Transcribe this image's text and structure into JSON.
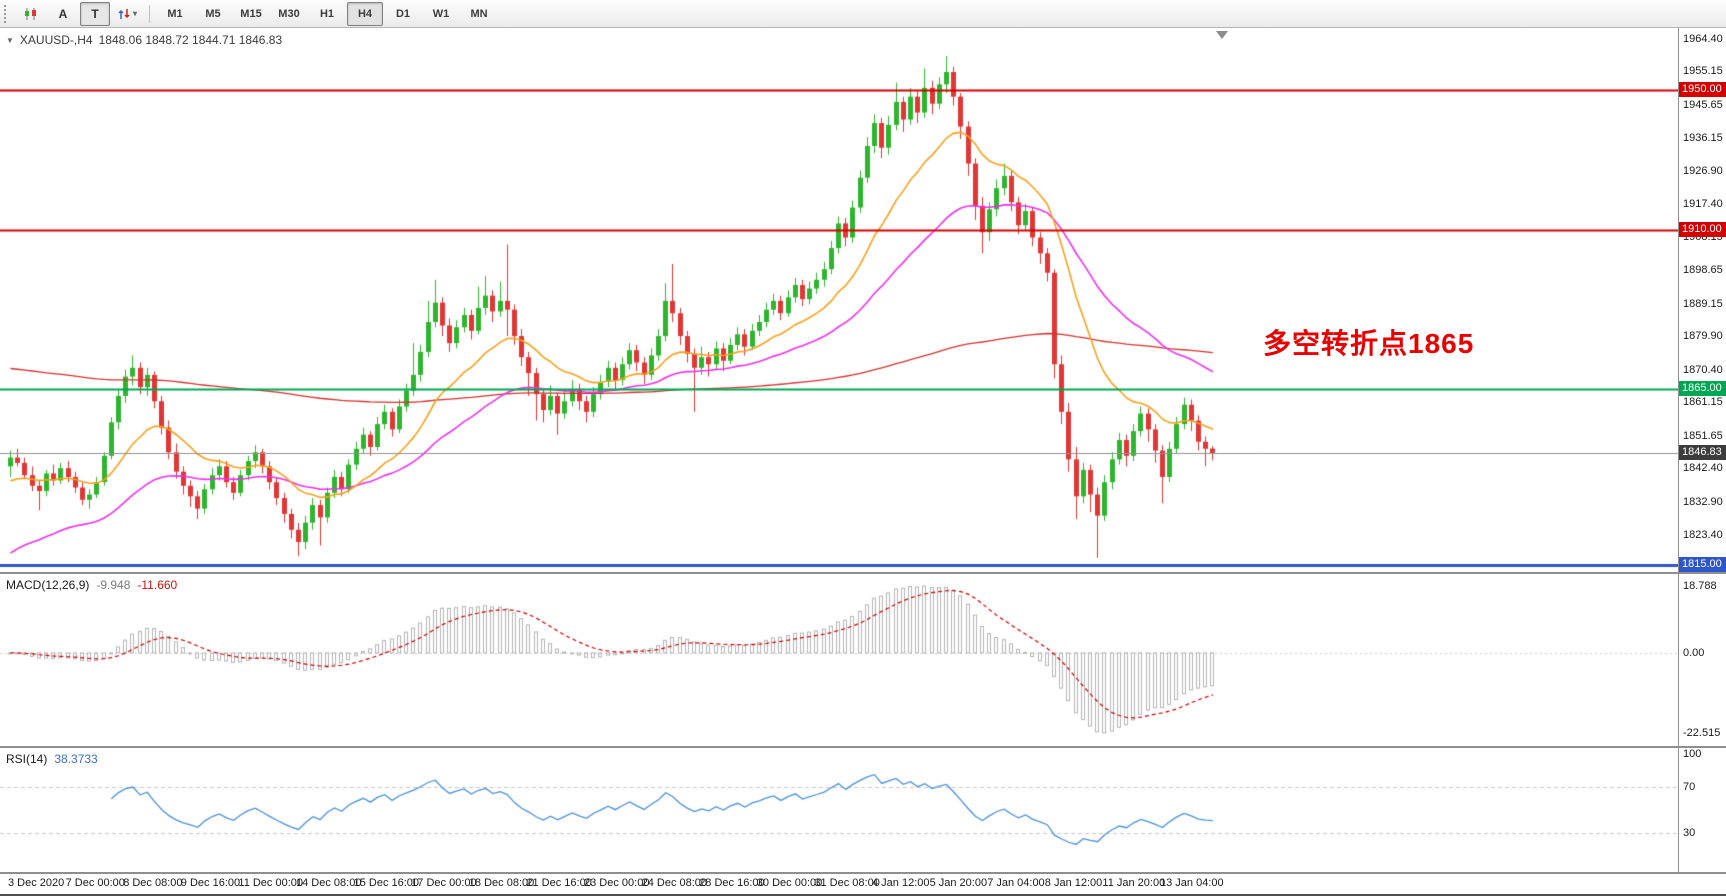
{
  "toolbar": {
    "label_a": "A",
    "label_t": "T",
    "timeframes": [
      "M1",
      "M5",
      "M15",
      "M30",
      "H1",
      "H4",
      "D1",
      "W1",
      "MN"
    ],
    "active_timeframe": "H4"
  },
  "main_chart": {
    "symbol_label": "XAUUSD-,H4",
    "ohlc_values": "1848.06 1848.72 1844.71 1846.83",
    "annotation": "多空转折点1865",
    "annotation_color": "#e60000",
    "hlines": [
      {
        "price": 1950.0,
        "label": "1950.00",
        "color": "#d40000",
        "width": 2
      },
      {
        "price": 1910.0,
        "label": "1910.00",
        "color": "#d40000",
        "width": 2
      },
      {
        "price": 1865.0,
        "label": "1865.00",
        "color": "#00a651",
        "width": 2
      },
      {
        "price": 1815.0,
        "label": "1815.00",
        "color": "#2e56c8",
        "width": 3
      }
    ],
    "current_price": {
      "value": 1846.83,
      "label": "1846.83",
      "bg": "#3c3c3c"
    },
    "price_ticks": [
      "1964.40",
      "1955.15",
      "1945.65",
      "1936.15",
      "1926.90",
      "1917.40",
      "1908.15",
      "1898.65",
      "1889.15",
      "1879.90",
      "1870.40",
      "1861.15",
      "1851.65",
      "1842.40",
      "1832.90",
      "1823.40"
    ]
  },
  "macd_panel": {
    "name": "MACD(12,26,9)",
    "value_main": "-9.948",
    "value_signal": "-11.660",
    "axis_labels": [
      "18.788",
      "0.00",
      "-22.515"
    ]
  },
  "rsi_panel": {
    "name": "RSI(14)",
    "value": "38.3733",
    "axis_labels": [
      "100",
      "70",
      "30"
    ],
    "levels": [
      70,
      30
    ]
  },
  "time_axis": {
    "labels": [
      "3 Dec 2020",
      "7 Dec 00:00",
      "8 Dec 08:00",
      "9 Dec 16:00",
      "11 Dec 00:00",
      "14 Dec 08:00",
      "15 Dec 16:00",
      "17 Dec 00:00",
      "18 Dec 08:00",
      "21 Dec 16:00",
      "23 Dec 00:00",
      "24 Dec 08:00",
      "28 Dec 16:00",
      "30 Dec 00:00",
      "31 Dec 08:00",
      "4 Jan 12:00",
      "5 Jan 20:00",
      "7 Jan 04:00",
      "8 Jan 12:00",
      "11 Jan 20:00",
      "13 Jan 04:00"
    ]
  },
  "colors": {
    "up": "#2fb42f",
    "down": "#e03636",
    "macd_hist": "#b4b4b4",
    "macd_signal": "#d00000",
    "rsi_line": "#4a90d9",
    "level_dash": "#c8c8c8",
    "current_line": "#909090"
  },
  "chart_data": {
    "type": "candlestick",
    "symbol": "XAUUSD",
    "timeframe": "H4",
    "title": "XAUUSD-,H4",
    "ylim": [
      1813.0,
      1967.5
    ],
    "overlays": [
      {
        "name": "ma-slow-red",
        "color": "#d23030",
        "period": 250,
        "seed": 1871,
        "width": 1.3
      },
      {
        "name": "ma-mid-magenta",
        "color": "#ee30ee",
        "period": 40,
        "seed": 1817,
        "width": 1.6
      },
      {
        "name": "ma-fast-orange",
        "color": "#f6a11c",
        "period": 16,
        "seed": 1838,
        "width": 1.6
      }
    ],
    "ohlc": [
      [
        1843,
        1847.5,
        1840,
        1845.5
      ],
      [
        1845.5,
        1848,
        1843,
        1844
      ],
      [
        1844,
        1845.5,
        1839.5,
        1840.5
      ],
      [
        1840.5,
        1843,
        1836,
        1837.5
      ],
      [
        1837.5,
        1839,
        1830.5,
        1836
      ],
      [
        1836,
        1842,
        1834.5,
        1841
      ],
      [
        1841,
        1843.5,
        1837.5,
        1839
      ],
      [
        1839,
        1844,
        1838,
        1842.5
      ],
      [
        1842.5,
        1844.5,
        1838.5,
        1840
      ],
      [
        1840,
        1841.5,
        1835.5,
        1837
      ],
      [
        1837,
        1838.5,
        1832,
        1833.5
      ],
      [
        1833.5,
        1836.5,
        1831,
        1835
      ],
      [
        1835,
        1840,
        1834,
        1838.5
      ],
      [
        1838.5,
        1847,
        1837.5,
        1846
      ],
      [
        1846,
        1857,
        1845,
        1855.5
      ],
      [
        1855.5,
        1865,
        1853.5,
        1863
      ],
      [
        1863,
        1870.5,
        1861,
        1868.5
      ],
      [
        1868.5,
        1874.5,
        1866,
        1871
      ],
      [
        1871,
        1872.5,
        1863.5,
        1865.5
      ],
      [
        1865.5,
        1871,
        1863,
        1869
      ],
      [
        1869,
        1870,
        1859.5,
        1861.5
      ],
      [
        1861.5,
        1863,
        1852,
        1854
      ],
      [
        1854,
        1856,
        1845,
        1847
      ],
      [
        1847,
        1849.5,
        1839.5,
        1841.5
      ],
      [
        1841.5,
        1843,
        1835,
        1837.5
      ],
      [
        1837.5,
        1839,
        1831.5,
        1834.5
      ],
      [
        1834.5,
        1836,
        1828,
        1831
      ],
      [
        1831,
        1838,
        1829.5,
        1836.5
      ],
      [
        1836.5,
        1842.5,
        1835,
        1840.5
      ],
      [
        1840.5,
        1845,
        1839,
        1843
      ],
      [
        1843,
        1844.5,
        1837,
        1838.5
      ],
      [
        1838.5,
        1840,
        1833.5,
        1835.5
      ],
      [
        1835.5,
        1842,
        1834.5,
        1840.5
      ],
      [
        1840.5,
        1846,
        1839,
        1844.5
      ],
      [
        1844.5,
        1849,
        1842.5,
        1847
      ],
      [
        1847,
        1848,
        1841,
        1843
      ],
      [
        1843,
        1844.5,
        1836.5,
        1838.5
      ],
      [
        1838.5,
        1840,
        1832,
        1834
      ],
      [
        1834,
        1835.5,
        1827,
        1829.5
      ],
      [
        1829.5,
        1831,
        1822.5,
        1825
      ],
      [
        1825,
        1827,
        1817.5,
        1821.5
      ],
      [
        1821.5,
        1829,
        1819.5,
        1827
      ],
      [
        1827,
        1834,
        1825,
        1832
      ],
      [
        1832,
        1833.5,
        1820.5,
        1828.5
      ],
      [
        1828.5,
        1837,
        1827,
        1835.5
      ],
      [
        1835.5,
        1842,
        1834,
        1840
      ],
      [
        1840,
        1841.5,
        1834.5,
        1836.5
      ],
      [
        1836.5,
        1845,
        1835.5,
        1843.5
      ],
      [
        1843.5,
        1850,
        1842,
        1848
      ],
      [
        1848,
        1854,
        1846.5,
        1852
      ],
      [
        1852,
        1853,
        1846,
        1848.5
      ],
      [
        1848.5,
        1857,
        1847.5,
        1855
      ],
      [
        1855,
        1860.5,
        1853.5,
        1858.5
      ],
      [
        1858.5,
        1859.5,
        1851.5,
        1853.5
      ],
      [
        1853.5,
        1862,
        1852.5,
        1860
      ],
      [
        1860,
        1866.5,
        1858.5,
        1864.5
      ],
      [
        1864.5,
        1878,
        1863,
        1869
      ],
      [
        1869,
        1877.5,
        1867,
        1875.5
      ],
      [
        1875.5,
        1890,
        1874,
        1884
      ],
      [
        1884,
        1896,
        1882.5,
        1889.5
      ],
      [
        1889.5,
        1891,
        1880,
        1883
      ],
      [
        1883,
        1885,
        1875.5,
        1878
      ],
      [
        1878,
        1884.5,
        1876.5,
        1882.5
      ],
      [
        1882.5,
        1888,
        1881,
        1886
      ],
      [
        1886,
        1887.5,
        1879,
        1881.5
      ],
      [
        1881.5,
        1894,
        1880.5,
        1888
      ],
      [
        1888,
        1897,
        1886,
        1891.5
      ],
      [
        1891.5,
        1893,
        1884,
        1887
      ],
      [
        1887,
        1895.5,
        1885.5,
        1890
      ],
      [
        1890,
        1906,
        1880,
        1887.5
      ],
      [
        1887.5,
        1889,
        1877.5,
        1880
      ],
      [
        1880,
        1882,
        1871.5,
        1874
      ],
      [
        1874,
        1875.5,
        1863,
        1869.5
      ],
      [
        1869.5,
        1871,
        1856,
        1863.5
      ],
      [
        1863.5,
        1865,
        1855.5,
        1859
      ],
      [
        1859,
        1866,
        1857.5,
        1863
      ],
      [
        1863,
        1864,
        1852,
        1858
      ],
      [
        1858,
        1864.5,
        1856.5,
        1861.5
      ],
      [
        1861.5,
        1867.5,
        1860,
        1865
      ],
      [
        1865,
        1866.5,
        1859,
        1861.5
      ],
      [
        1861.5,
        1863,
        1855.5,
        1858.5
      ],
      [
        1858.5,
        1865.5,
        1857,
        1863.5
      ],
      [
        1863.5,
        1869,
        1862,
        1867
      ],
      [
        1867,
        1873,
        1865.5,
        1871
      ],
      [
        1871,
        1872.5,
        1865,
        1867.5
      ],
      [
        1867.5,
        1874,
        1866,
        1872
      ],
      [
        1872,
        1878,
        1870.5,
        1876
      ],
      [
        1876,
        1877.5,
        1870,
        1872.5
      ],
      [
        1872.5,
        1874,
        1866.5,
        1869
      ],
      [
        1869,
        1876.5,
        1867.5,
        1874.5
      ],
      [
        1874.5,
        1882,
        1873,
        1880
      ],
      [
        1880,
        1895,
        1878.5,
        1890
      ],
      [
        1890,
        1900.5,
        1884,
        1886.5
      ],
      [
        1886.5,
        1888,
        1877.5,
        1880
      ],
      [
        1880,
        1881.5,
        1872.5,
        1875
      ],
      [
        1875,
        1876.5,
        1858.5,
        1871
      ],
      [
        1871,
        1877,
        1869,
        1874
      ],
      [
        1874,
        1875.5,
        1868.5,
        1872
      ],
      [
        1872,
        1878.5,
        1870.5,
        1876.5
      ],
      [
        1876.5,
        1878,
        1870,
        1873
      ],
      [
        1873,
        1879.5,
        1872,
        1877.5
      ],
      [
        1877.5,
        1882.5,
        1876,
        1880.5
      ],
      [
        1880.5,
        1882,
        1874.5,
        1877
      ],
      [
        1877,
        1883.5,
        1876,
        1881.5
      ],
      [
        1881.5,
        1886,
        1880,
        1884
      ],
      [
        1884,
        1889.5,
        1882.5,
        1887.5
      ],
      [
        1887.5,
        1892,
        1886,
        1890
      ],
      [
        1890,
        1891.5,
        1884.5,
        1886.5
      ],
      [
        1886.5,
        1893,
        1885.5,
        1891
      ],
      [
        1891,
        1896.5,
        1889.5,
        1894.5
      ],
      [
        1894.5,
        1896,
        1888.5,
        1890.5
      ],
      [
        1890.5,
        1895.5,
        1889,
        1893.5
      ],
      [
        1893.5,
        1898,
        1892,
        1896
      ],
      [
        1896,
        1901,
        1894,
        1899
      ],
      [
        1899,
        1907,
        1897.5,
        1905
      ],
      [
        1905,
        1914,
        1903.5,
        1912
      ],
      [
        1912,
        1913.5,
        1905.5,
        1908
      ],
      [
        1908,
        1918.5,
        1906.5,
        1916.5
      ],
      [
        1916.5,
        1927,
        1915,
        1925
      ],
      [
        1925,
        1936.5,
        1923.5,
        1934
      ],
      [
        1934,
        1943,
        1932,
        1940.5
      ],
      [
        1940.5,
        1942,
        1930.5,
        1933.5
      ],
      [
        1933.5,
        1942.5,
        1931.5,
        1940
      ],
      [
        1940,
        1952,
        1938.5,
        1946.5
      ],
      [
        1946.5,
        1948,
        1938,
        1941.5
      ],
      [
        1941.5,
        1950.5,
        1940,
        1948
      ],
      [
        1948,
        1949.5,
        1940.5,
        1943.5
      ],
      [
        1943.5,
        1956,
        1942,
        1950.5
      ],
      [
        1950.5,
        1952.5,
        1943,
        1946
      ],
      [
        1946,
        1953.5,
        1944.5,
        1951.5
      ],
      [
        1951.5,
        1959.5,
        1949,
        1955
      ],
      [
        1955,
        1956.5,
        1945.5,
        1948
      ],
      [
        1948,
        1949,
        1936,
        1939.5
      ],
      [
        1939.5,
        1941,
        1925.5,
        1929
      ],
      [
        1929,
        1930.5,
        1913,
        1917
      ],
      [
        1917,
        1919.5,
        1903.5,
        1909.5
      ],
      [
        1909.5,
        1918,
        1907,
        1916
      ],
      [
        1916,
        1924.5,
        1914,
        1922
      ],
      [
        1922,
        1929,
        1920,
        1925.5
      ],
      [
        1925.5,
        1927,
        1915.5,
        1918
      ],
      [
        1918,
        1919.5,
        1909,
        1911.5
      ],
      [
        1911.5,
        1917.5,
        1910,
        1915.5
      ],
      [
        1915.5,
        1916.5,
        1905.5,
        1908
      ],
      [
        1908,
        1909.5,
        1900.5,
        1903.5
      ],
      [
        1903.5,
        1905,
        1895.5,
        1898
      ],
      [
        1898,
        1899,
        1868,
        1872
      ],
      [
        1872,
        1874.5,
        1855,
        1858.5
      ],
      [
        1858.5,
        1861,
        1841.5,
        1845
      ],
      [
        1845,
        1848.5,
        1828,
        1834.5
      ],
      [
        1834.5,
        1844,
        1832.5,
        1842
      ],
      [
        1842,
        1843.5,
        1830,
        1835
      ],
      [
        1835,
        1837,
        1817,
        1829
      ],
      [
        1829,
        1840.5,
        1827.5,
        1838.5
      ],
      [
        1838.5,
        1847,
        1836.5,
        1845
      ],
      [
        1845,
        1852.5,
        1843.5,
        1850.5
      ],
      [
        1850.5,
        1852,
        1843,
        1846
      ],
      [
        1846,
        1855,
        1844.5,
        1853
      ],
      [
        1853,
        1860,
        1851.5,
        1858
      ],
      [
        1858,
        1859.5,
        1850,
        1853.5
      ],
      [
        1853.5,
        1855,
        1844,
        1847.5
      ],
      [
        1847.5,
        1849,
        1832.5,
        1840
      ],
      [
        1840,
        1850,
        1838.5,
        1848
      ],
      [
        1848,
        1857,
        1846.5,
        1855
      ],
      [
        1855,
        1862.5,
        1853.5,
        1860.5
      ],
      [
        1860.5,
        1862,
        1853,
        1856
      ],
      [
        1856,
        1857.5,
        1847.5,
        1850
      ],
      [
        1850,
        1851.5,
        1843,
        1848
      ],
      [
        1848.06,
        1848.72,
        1844.71,
        1846.83
      ]
    ]
  }
}
